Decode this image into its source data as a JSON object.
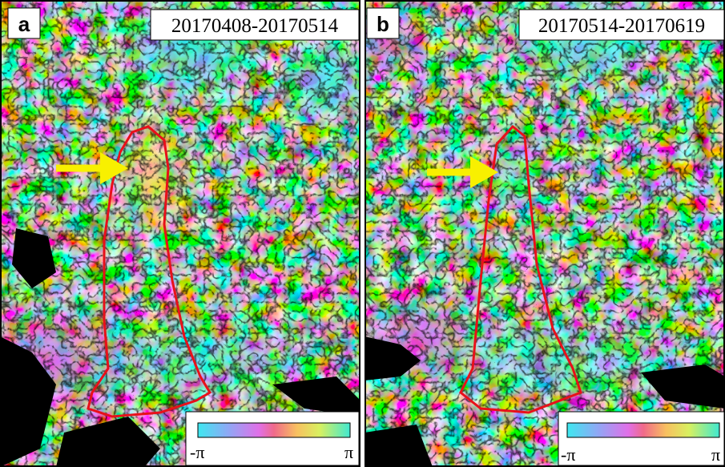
{
  "panels": [
    {
      "label": "a",
      "date_range": "20170408-20170514",
      "colorbar": {
        "min_label": "-π",
        "max_label": "π"
      }
    },
    {
      "label": "b",
      "date_range": "20170514-20170619",
      "colorbar": {
        "min_label": "-π",
        "max_label": "π"
      }
    }
  ]
}
